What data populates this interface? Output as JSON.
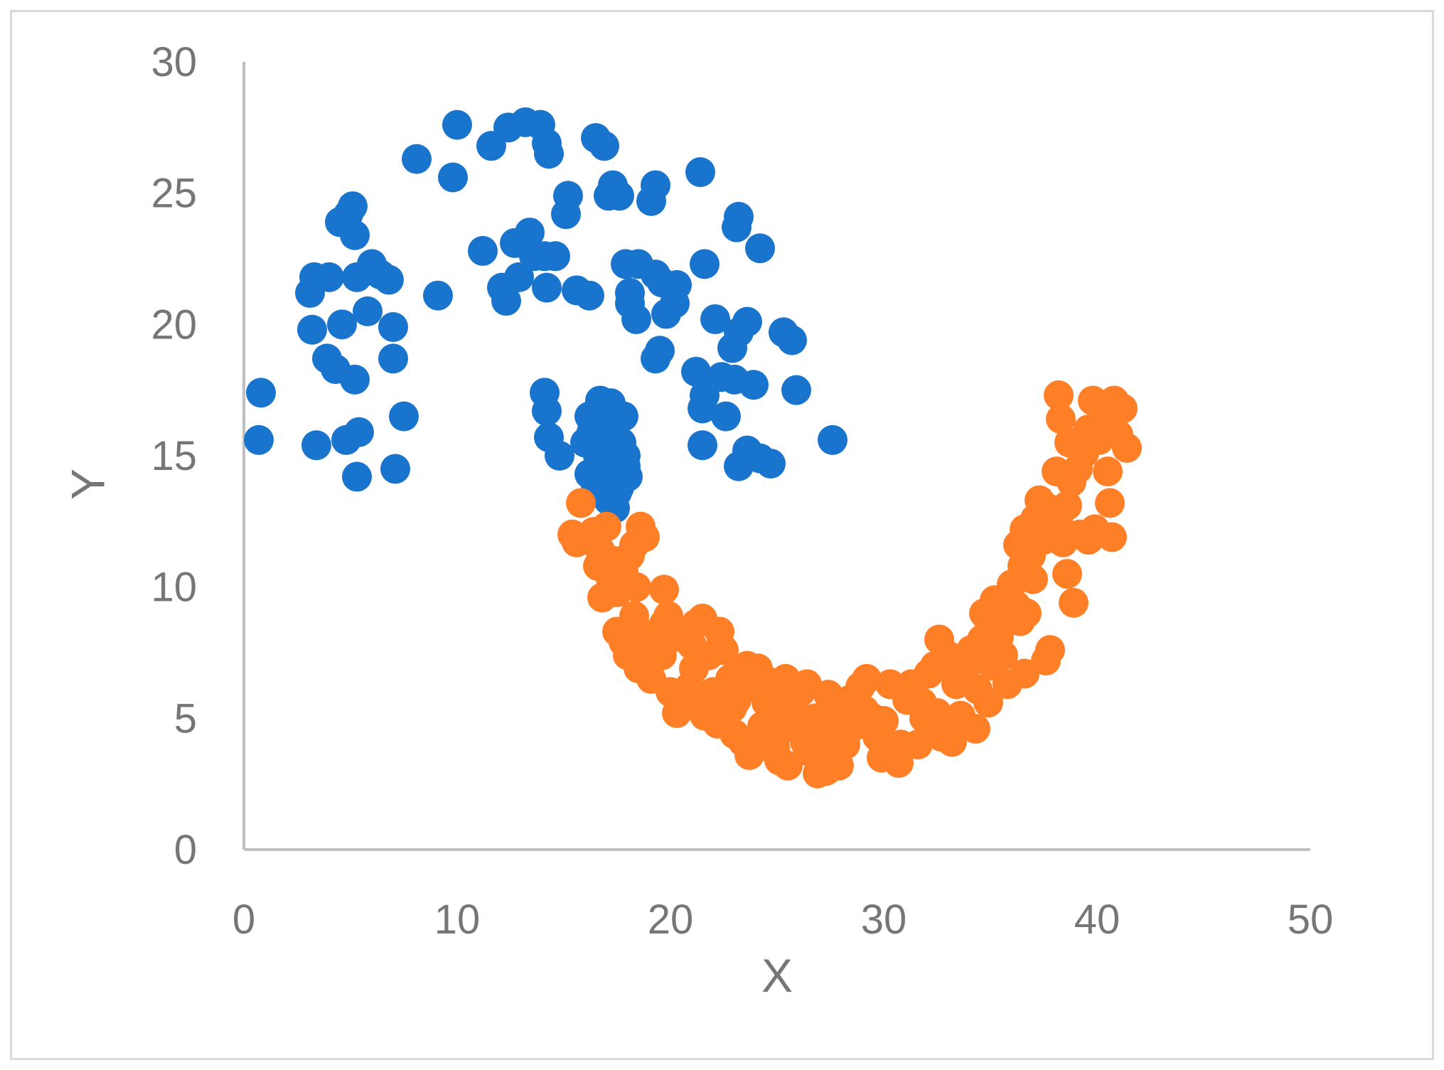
{
  "chart_data": {
    "type": "scatter",
    "title": "",
    "xlabel": "X",
    "ylabel": "Y",
    "xlim": [
      0,
      50
    ],
    "ylim": [
      0,
      30
    ],
    "xticks": [
      0,
      10,
      20,
      30,
      40,
      50
    ],
    "yticks": [
      0,
      5,
      10,
      15,
      20,
      25,
      30
    ],
    "grid": false,
    "legend": "none",
    "series": [
      {
        "color": "#1874cd",
        "points": [
          [
            0.8,
            17.4
          ],
          [
            0.7,
            15.6
          ],
          [
            3.1,
            21.2
          ],
          [
            3.3,
            21.8
          ],
          [
            3.2,
            19.8
          ],
          [
            4.0,
            21.8
          ],
          [
            3.4,
            15.4
          ],
          [
            3.9,
            18.7
          ],
          [
            4.3,
            18.3
          ],
          [
            4.6,
            20.0
          ],
          [
            4.5,
            23.9
          ],
          [
            4.9,
            24.2
          ],
          [
            5.1,
            24.5
          ],
          [
            5.2,
            23.4
          ],
          [
            5.3,
            21.8
          ],
          [
            5.2,
            17.9
          ],
          [
            4.8,
            15.6
          ],
          [
            5.4,
            15.9
          ],
          [
            5.3,
            14.2
          ],
          [
            5.8,
            20.5
          ],
          [
            6.0,
            22.3
          ],
          [
            6.4,
            21.9
          ],
          [
            6.8,
            21.7
          ],
          [
            7.0,
            19.9
          ],
          [
            7.0,
            18.7
          ],
          [
            7.5,
            16.5
          ],
          [
            7.1,
            14.5
          ],
          [
            8.1,
            26.3
          ],
          [
            9.1,
            21.1
          ],
          [
            9.8,
            25.6
          ],
          [
            10.0,
            27.6
          ],
          [
            11.2,
            22.8
          ],
          [
            11.6,
            26.8
          ],
          [
            12.1,
            21.4
          ],
          [
            12.3,
            20.9
          ],
          [
            12.4,
            27.5
          ],
          [
            12.7,
            23.1
          ],
          [
            12.9,
            21.8
          ],
          [
            13.2,
            27.7
          ],
          [
            13.4,
            23.5
          ],
          [
            13.6,
            22.6
          ],
          [
            13.9,
            27.6
          ],
          [
            14.2,
            26.9
          ],
          [
            14.3,
            26.5
          ],
          [
            14.1,
            22.6
          ],
          [
            14.2,
            21.4
          ],
          [
            14.6,
            22.6
          ],
          [
            15.2,
            24.9
          ],
          [
            15.1,
            24.2
          ],
          [
            14.1,
            17.4
          ],
          [
            14.2,
            16.7
          ],
          [
            14.3,
            15.7
          ],
          [
            14.8,
            15.0
          ],
          [
            15.6,
            21.3
          ],
          [
            16.2,
            21.1
          ],
          [
            16.5,
            27.1
          ],
          [
            16.9,
            26.8
          ],
          [
            17.1,
            24.9
          ],
          [
            17.3,
            25.3
          ],
          [
            17.6,
            24.9
          ],
          [
            17.9,
            22.3
          ],
          [
            18.1,
            21.2
          ],
          [
            18.4,
            20.2
          ],
          [
            18.1,
            20.8
          ],
          [
            18.5,
            22.3
          ],
          [
            19.1,
            24.7
          ],
          [
            19.3,
            25.3
          ],
          [
            19.3,
            21.9
          ],
          [
            19.6,
            21.6
          ],
          [
            19.5,
            19.0
          ],
          [
            19.3,
            18.7
          ],
          [
            19.8,
            20.4
          ],
          [
            20.3,
            21.5
          ],
          [
            20.2,
            20.8
          ],
          [
            21.2,
            18.2
          ],
          [
            21.6,
            22.3
          ],
          [
            21.4,
            25.8
          ],
          [
            21.6,
            17.3
          ],
          [
            21.5,
            16.8
          ],
          [
            21.5,
            15.4
          ],
          [
            22.1,
            20.2
          ],
          [
            22.4,
            18.0
          ],
          [
            22.6,
            16.5
          ],
          [
            23.0,
            17.9
          ],
          [
            23.2,
            24.1
          ],
          [
            23.1,
            23.7
          ],
          [
            22.9,
            19.1
          ],
          [
            23.2,
            19.7
          ],
          [
            23.6,
            20.1
          ],
          [
            23.9,
            17.7
          ],
          [
            24.2,
            22.9
          ],
          [
            23.6,
            15.2
          ],
          [
            23.2,
            14.6
          ],
          [
            24.2,
            14.9
          ],
          [
            24.7,
            14.7
          ],
          [
            25.3,
            19.7
          ],
          [
            25.7,
            19.4
          ],
          [
            25.9,
            17.5
          ],
          [
            27.6,
            15.6
          ],
          [
            16.2,
            16.5
          ],
          [
            16.4,
            16.0
          ],
          [
            16.4,
            15.4
          ],
          [
            16.7,
            17.1
          ],
          [
            16.9,
            16.6
          ],
          [
            16.6,
            15.0
          ],
          [
            16.8,
            14.5
          ],
          [
            17.2,
            17.0
          ],
          [
            17.2,
            15.6
          ],
          [
            17.4,
            16.2
          ],
          [
            17.3,
            14.8
          ],
          [
            17.6,
            14.2
          ],
          [
            17.5,
            13.6
          ],
          [
            17.9,
            15.0
          ],
          [
            18.0,
            14.2
          ],
          [
            16.2,
            14.3
          ],
          [
            16.5,
            13.9
          ],
          [
            17.1,
            13.3
          ],
          [
            17.4,
            13.0
          ],
          [
            17.8,
            16.5
          ],
          [
            16.0,
            15.5
          ],
          [
            16.9,
            14.0
          ],
          [
            17.7,
            15.5
          ],
          [
            16.6,
            16.6
          ],
          [
            17.0,
            15.9
          ],
          [
            17.3,
            14.4
          ],
          [
            16.3,
            15.9
          ],
          [
            17.6,
            13.8
          ],
          [
            16.8,
            13.6
          ],
          [
            17.9,
            14.6
          ]
        ]
      },
      {
        "color": "#ff7f27",
        "points": [
          [
            15.8,
            13.2
          ],
          [
            15.4,
            12.0
          ],
          [
            15.6,
            11.7
          ],
          [
            16.4,
            12.1
          ],
          [
            16.7,
            11.4
          ],
          [
            17.0,
            12.3
          ],
          [
            16.6,
            10.8
          ],
          [
            17.3,
            11.0
          ],
          [
            16.8,
            9.6
          ],
          [
            17.5,
            9.8
          ],
          [
            17.8,
            10.6
          ],
          [
            18.1,
            11.2
          ],
          [
            18.6,
            12.3
          ],
          [
            18.8,
            11.9
          ],
          [
            18.4,
            10.0
          ],
          [
            18.3,
            11.6
          ],
          [
            17.5,
            8.3
          ],
          [
            17.8,
            7.9
          ],
          [
            18.0,
            7.4
          ],
          [
            18.4,
            7.8
          ],
          [
            18.8,
            8.2
          ],
          [
            18.5,
            6.9
          ],
          [
            19.1,
            6.5
          ],
          [
            19.2,
            7.7
          ],
          [
            19.6,
            7.4
          ],
          [
            19.9,
            8.9
          ],
          [
            19.7,
            9.9
          ],
          [
            20.2,
            8.1
          ],
          [
            20.0,
            6.0
          ],
          [
            20.3,
            5.2
          ],
          [
            20.7,
            5.7
          ],
          [
            20.9,
            6.2
          ],
          [
            21.0,
            7.8
          ],
          [
            21.2,
            8.6
          ],
          [
            21.5,
            8.8
          ],
          [
            21.8,
            7.4
          ],
          [
            21.4,
            5.8
          ],
          [
            21.6,
            5.1
          ],
          [
            22.0,
            6.0
          ],
          [
            22.3,
            8.3
          ],
          [
            22.5,
            7.6
          ],
          [
            22.8,
            6.5
          ],
          [
            22.6,
            5.0
          ],
          [
            22.2,
            4.8
          ],
          [
            23.0,
            4.4
          ],
          [
            23.1,
            5.7
          ],
          [
            23.4,
            6.8
          ],
          [
            23.6,
            7.0
          ],
          [
            23.8,
            6.2
          ],
          [
            23.4,
            4.1
          ],
          [
            23.7,
            3.6
          ],
          [
            24.1,
            3.9
          ],
          [
            24.3,
            4.7
          ],
          [
            24.5,
            5.6
          ],
          [
            24.6,
            6.4
          ],
          [
            24.1,
            6.9
          ],
          [
            24.9,
            5.5
          ],
          [
            24.7,
            4.3
          ],
          [
            25.1,
            3.4
          ],
          [
            25.5,
            3.2
          ],
          [
            25.3,
            4.6
          ],
          [
            25.6,
            5.7
          ],
          [
            25.4,
            6.5
          ],
          [
            25.9,
            5.2
          ],
          [
            26.1,
            6.0
          ],
          [
            26.4,
            6.3
          ],
          [
            26.3,
            4.1
          ],
          [
            26.8,
            5.0
          ],
          [
            26.6,
            3.7
          ],
          [
            26.9,
            2.9
          ],
          [
            27.3,
            3.0
          ],
          [
            27.2,
            4.4
          ],
          [
            27.4,
            5.9
          ],
          [
            27.8,
            5.1
          ],
          [
            27.9,
            3.2
          ],
          [
            27.6,
            3.5
          ],
          [
            28.2,
            4.0
          ],
          [
            28.6,
            4.7
          ],
          [
            28.4,
            5.7
          ],
          [
            28.9,
            6.2
          ],
          [
            29.2,
            6.5
          ],
          [
            29.5,
            5.0
          ],
          [
            29.7,
            4.3
          ],
          [
            29.9,
            3.5
          ],
          [
            30.0,
            4.9
          ],
          [
            30.3,
            6.3
          ],
          [
            30.5,
            3.5
          ],
          [
            30.7,
            3.3
          ],
          [
            30.8,
            4.0
          ],
          [
            31.1,
            5.7
          ],
          [
            31.3,
            6.3
          ],
          [
            31.6,
            4.0
          ],
          [
            31.9,
            5.0
          ],
          [
            32.1,
            6.7
          ],
          [
            32.4,
            7.0
          ],
          [
            32.5,
            5.2
          ],
          [
            32.7,
            4.3
          ],
          [
            32.6,
            8.0
          ],
          [
            33.0,
            7.4
          ],
          [
            33.2,
            4.1
          ],
          [
            33.4,
            6.3
          ],
          [
            33.6,
            5.1
          ],
          [
            33.8,
            6.8
          ],
          [
            34.1,
            7.6
          ],
          [
            34.3,
            4.6
          ],
          [
            34.4,
            6.1
          ],
          [
            34.6,
            8.0
          ],
          [
            34.7,
            9.0
          ],
          [
            34.9,
            5.6
          ],
          [
            35.1,
            7.0
          ],
          [
            35.2,
            9.5
          ],
          [
            35.4,
            8.1
          ],
          [
            35.6,
            7.4
          ],
          [
            35.8,
            6.3
          ],
          [
            36.0,
            10.1
          ],
          [
            36.2,
            9.3
          ],
          [
            36.4,
            8.7
          ],
          [
            36.5,
            10.8
          ],
          [
            36.7,
            9.0
          ],
          [
            36.9,
            11.2
          ],
          [
            36.6,
            12.2
          ],
          [
            37.0,
            10.3
          ],
          [
            37.3,
            13.3
          ],
          [
            37.1,
            12.6
          ],
          [
            37.5,
            11.8
          ],
          [
            37.7,
            13.0
          ],
          [
            37.6,
            7.2
          ],
          [
            37.8,
            7.6
          ],
          [
            36.6,
            6.7
          ],
          [
            38.1,
            14.4
          ],
          [
            38.2,
            12.4
          ],
          [
            38.4,
            11.7
          ],
          [
            38.6,
            13.1
          ],
          [
            38.8,
            14.0
          ],
          [
            38.2,
            17.3
          ],
          [
            38.3,
            16.4
          ],
          [
            38.7,
            15.5
          ],
          [
            39.1,
            14.5
          ],
          [
            39.2,
            12.0
          ],
          [
            38.9,
            9.4
          ],
          [
            38.6,
            10.5
          ],
          [
            39.4,
            15.1
          ],
          [
            39.6,
            16.0
          ],
          [
            39.8,
            17.1
          ],
          [
            39.9,
            12.2
          ],
          [
            40.1,
            15.6
          ],
          [
            40.3,
            16.5
          ],
          [
            40.5,
            14.4
          ],
          [
            40.7,
            11.9
          ],
          [
            40.6,
            13.2
          ],
          [
            41.0,
            15.8
          ],
          [
            41.2,
            16.8
          ],
          [
            41.4,
            15.3
          ],
          [
            40.8,
            17.1
          ],
          [
            39.6,
            11.8
          ],
          [
            36.8,
            10.4
          ],
          [
            35.5,
            8.6
          ],
          [
            33.5,
            7.2
          ],
          [
            31.8,
            5.6
          ],
          [
            29.1,
            5.3
          ],
          [
            27.7,
            4.6
          ],
          [
            26.0,
            4.8
          ],
          [
            24.9,
            3.9
          ],
          [
            22.9,
            5.4
          ],
          [
            21.1,
            6.9
          ],
          [
            19.7,
            8.6
          ],
          [
            18.3,
            8.9
          ],
          [
            17.2,
            10.3
          ],
          [
            34.9,
            8.3
          ],
          [
            36.3,
            11.6
          ]
        ]
      }
    ]
  }
}
